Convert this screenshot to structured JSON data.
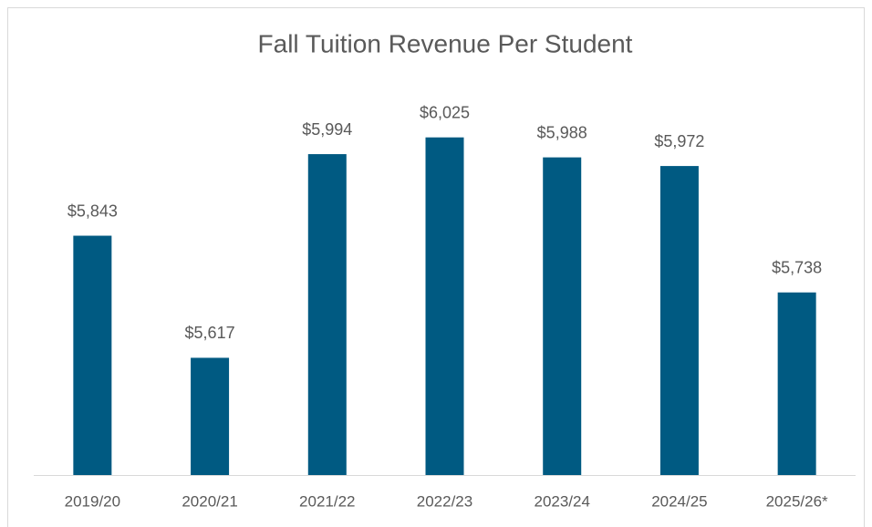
{
  "chart_data": {
    "type": "bar",
    "title": "Fall Tuition Revenue Per Student",
    "categories": [
      "2019/20",
      "2020/21",
      "2021/22",
      "2022/23",
      "2023/24",
      "2024/25",
      "2025/26*"
    ],
    "values": [
      5843,
      5617,
      5994,
      6025,
      5988,
      5972,
      5738
    ],
    "value_labels": [
      "$5,843",
      "$5,617",
      "$5,994",
      "$6,025",
      "$5,988",
      "$5,972",
      "$5,738"
    ],
    "color": "#005a82",
    "ylim": [
      5400,
      6200
    ]
  }
}
